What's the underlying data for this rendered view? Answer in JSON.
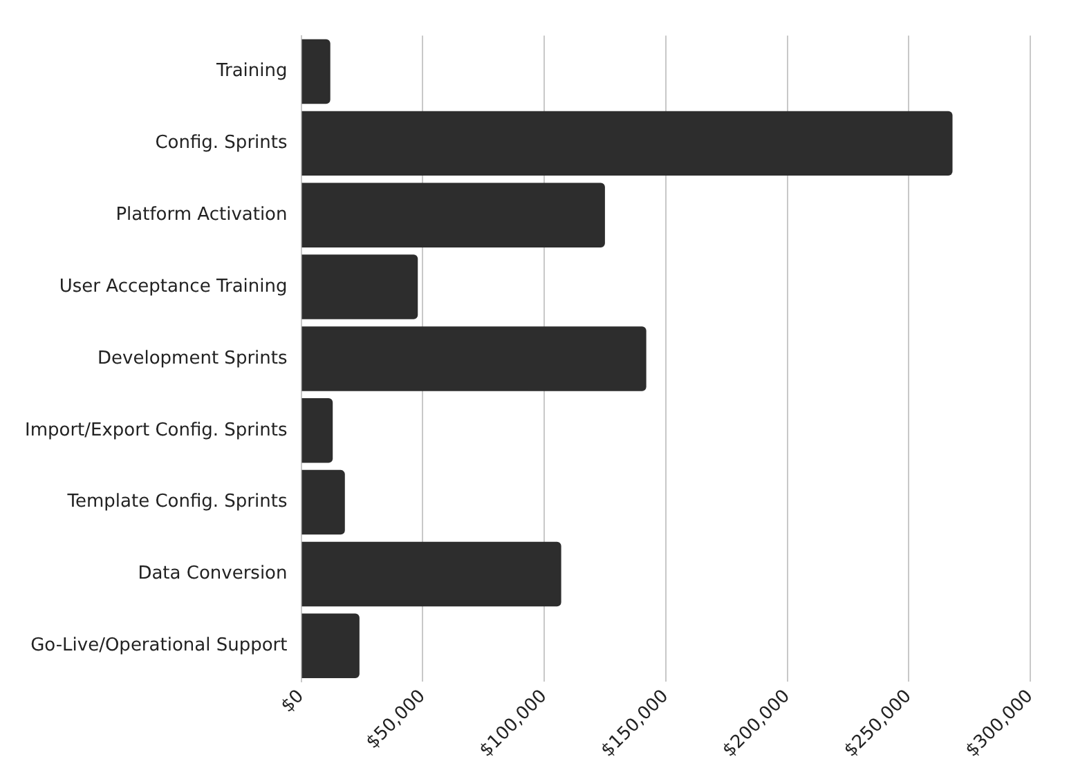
{
  "chart_data": {
    "type": "bar",
    "orientation": "horizontal",
    "categories": [
      "Training",
      "Config. Sprints",
      "Platform Activation",
      "User Acceptance Training",
      "Development Sprints",
      "Import/Export Config. Sprints",
      "Template Config. Sprints",
      "Data Conversion",
      "Go-Live/Operational Support"
    ],
    "values": [
      12000,
      268000,
      125000,
      48000,
      142000,
      13000,
      18000,
      107000,
      24000
    ],
    "color": "#2d2d2d",
    "xlim": [
      0,
      300000
    ],
    "xticks": [
      {
        "value": 0,
        "label": "$0"
      },
      {
        "value": 50000,
        "label": "$50,000"
      },
      {
        "value": 100000,
        "label": "$100,000"
      },
      {
        "value": 150000,
        "label": "$150,000"
      },
      {
        "value": 200000,
        "label": "$200,000"
      },
      {
        "value": 250000,
        "label": "$250,000"
      },
      {
        "value": 300000,
        "label": "$300,000"
      }
    ],
    "grid": "x",
    "legend": false
  }
}
